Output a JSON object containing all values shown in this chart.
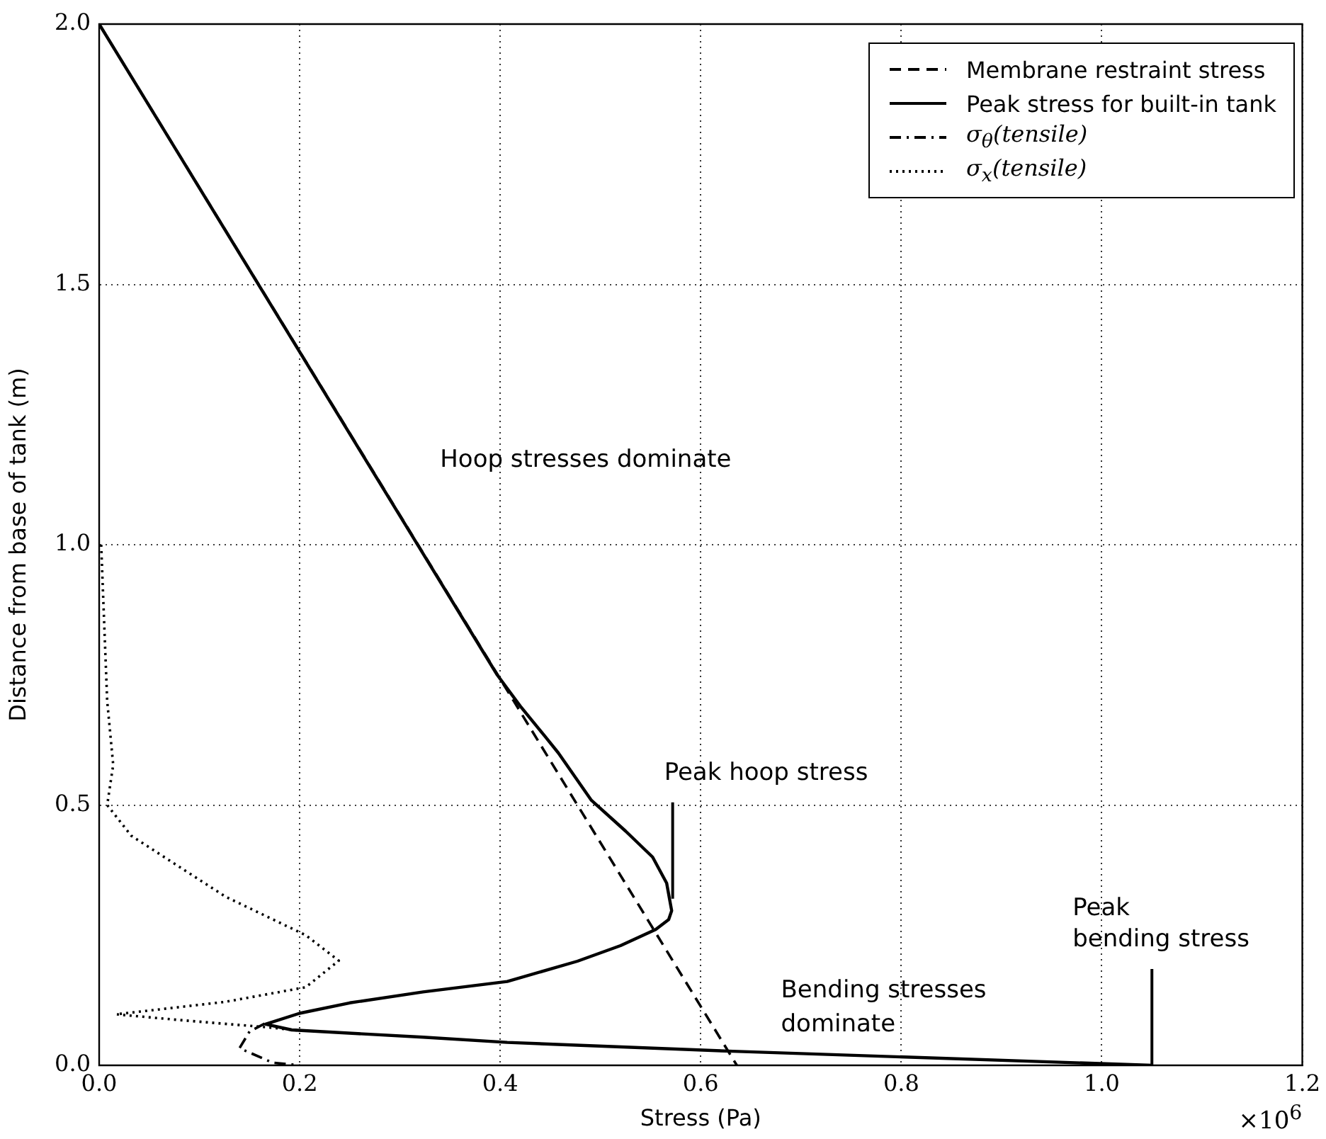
{
  "chart_data": {
    "type": "line",
    "xlabel": "Stress (Pa)",
    "ylabel": "Distance from base of tank (m)",
    "xlim": [
      0,
      1.2
    ],
    "ylim": [
      0,
      2
    ],
    "xticks": [
      {
        "value": 0,
        "label": "0.0"
      },
      0.2,
      0.4,
      0.6,
      0.8,
      {
        "value": 1,
        "label": "1.0"
      },
      1.2
    ],
    "yticks": [
      {
        "value": 0,
        "label": "0.0"
      },
      0.5,
      {
        "value": 1,
        "label": "1.0"
      },
      1.5,
      {
        "value": 2,
        "label": "2.0"
      }
    ],
    "grid": true,
    "legend": "top right",
    "marker": "none",
    "series": [
      {
        "name": "Membrane restraint stress",
        "color": "#000000",
        "line_style": "dashed",
        "x": [
          0,
          0.636
        ],
        "values": [
          2,
          0
        ]
      },
      {
        "name": "Peak stress for built-in tank",
        "color": "#000000",
        "line_style": "solid",
        "x": [
          0,
          0.397,
          0.42,
          0.445,
          0.458,
          0.491,
          0.525,
          0.552,
          0.566,
          0.571,
          0.568,
          0.555,
          0.52,
          0.477,
          0.407,
          0.323,
          0.25,
          0.2,
          0.166,
          0.192,
          0.323,
          0.407,
          0.632,
          1.05
        ],
        "values": [
          2,
          0.75,
          0.69,
          0.631,
          0.6,
          0.509,
          0.45,
          0.4,
          0.35,
          0.297,
          0.28,
          0.261,
          0.23,
          0.2,
          0.161,
          0.141,
          0.12,
          0.1,
          0.079,
          0.068,
          0.054,
          0.044,
          0.027,
          0
        ]
      },
      {
        "name": "σ$_{θ}$(tensile)",
        "color": "#000000",
        "line_style": "dashdot",
        "x": [
          0.165,
          0.15,
          0.14,
          0.173,
          0.2
        ],
        "values": [
          0.08,
          0.065,
          0.033,
          0.005,
          0
        ]
      },
      {
        "name": "σ$_{x}$(tensile)",
        "color": "#000000",
        "line_style": "dotted",
        "x": [
          0.002,
          0.004,
          0.008,
          0.014,
          0.008,
          0.032,
          0.126,
          0.206,
          0.239,
          0.206,
          0.126,
          0.017,
          0.08,
          0.168,
          0.205
        ],
        "values": [
          1,
          0.9,
          0.7,
          0.577,
          0.5,
          0.441,
          0.324,
          0.25,
          0.201,
          0.15,
          0.122,
          0.098,
          0.087,
          0.073,
          0.066
        ]
      }
    ],
    "annotations": [
      "Hoop stresses dominate",
      "Bending stresses\ndominate",
      {
        "text": "Peak hoop stress",
        "x": 0.572,
        "y": 0.32
      },
      {
        "text": "Peak\nbending stress",
        "x": 1.05,
        "y": 0
      },
      "×10$^{6}$"
    ]
  }
}
